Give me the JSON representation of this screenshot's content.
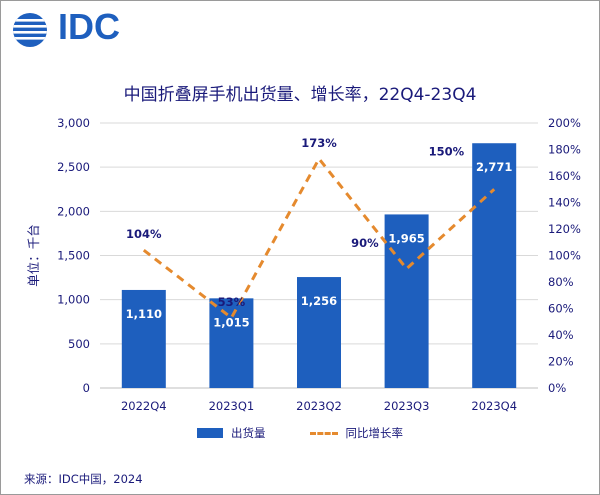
{
  "logo": {
    "text": "IDC",
    "color": "#1e5fbe"
  },
  "chart_data": {
    "type": "bar",
    "title": "中国折叠屏手机出货量、增长率，22Q4-23Q4",
    "categories": [
      "2022Q4",
      "2023Q1",
      "2023Q2",
      "2023Q3",
      "2023Q4"
    ],
    "series": [
      {
        "name": "出货量",
        "type": "bar",
        "axis": "left",
        "color": "#1e5fbe",
        "values": [
          1110,
          1015,
          1256,
          1965,
          2771
        ],
        "labels": [
          "1,110",
          "1,015",
          "1,256",
          "1,965",
          "2,771"
        ]
      },
      {
        "name": "同比增长率",
        "type": "line",
        "axis": "right",
        "style": "dashed",
        "color": "#e58a2e",
        "values": [
          104,
          53,
          173,
          90,
          150
        ],
        "labels": [
          "104%",
          "53%",
          "173%",
          "90%",
          "150%"
        ]
      }
    ],
    "ylabel": "单位：千台",
    "y_left": {
      "min": 0,
      "max": 3000,
      "ticks": [
        0,
        500,
        1000,
        1500,
        2000,
        2500,
        3000
      ],
      "tick_labels": [
        "0",
        "500",
        "1,000",
        "1,500",
        "2,000",
        "2,500",
        "3,000"
      ]
    },
    "y_right": {
      "min": 0,
      "max": 200,
      "ticks": [
        0,
        20,
        40,
        60,
        80,
        100,
        120,
        140,
        160,
        180,
        200
      ],
      "tick_labels": [
        "0%",
        "20%",
        "40%",
        "60%",
        "80%",
        "100%",
        "120%",
        "140%",
        "160%",
        "180%",
        "200%"
      ]
    },
    "grid": true,
    "legend": "bottom"
  },
  "source": "来源：IDC中国，2024"
}
